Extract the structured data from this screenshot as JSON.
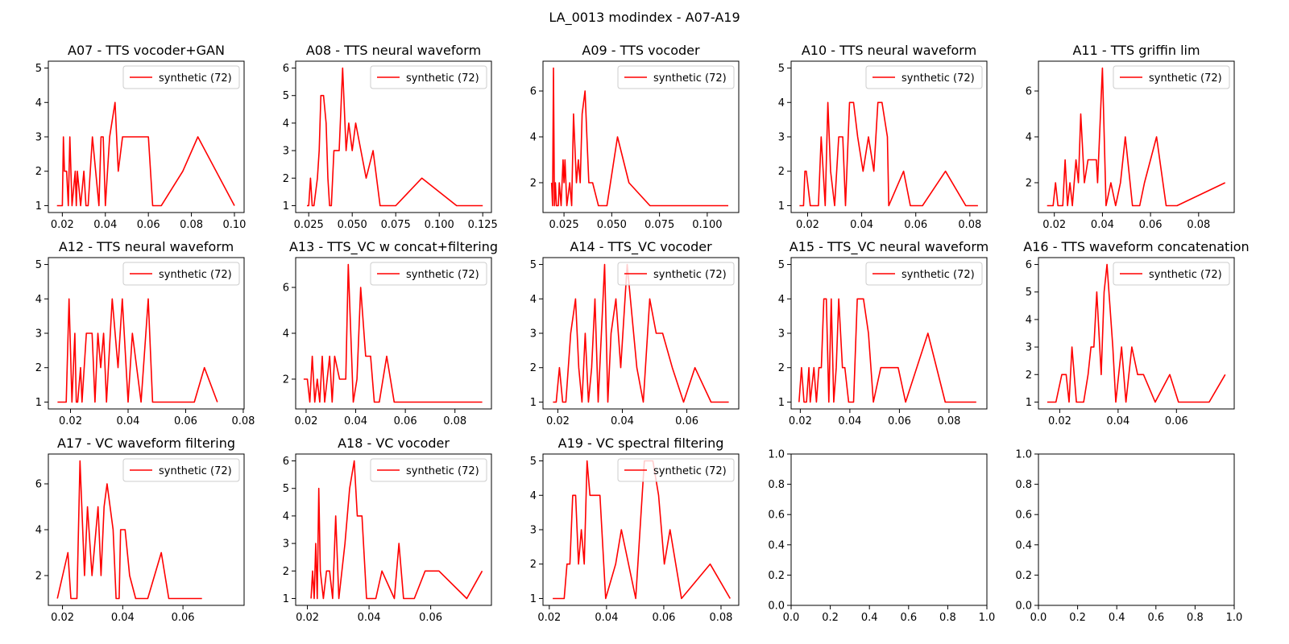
{
  "figure_title": "LA_0013 modindex - A07-A19",
  "series_color": "#ff0000",
  "chart_data": [
    {
      "type": "line",
      "title": "A07 - TTS vocoder+GAN",
      "legend": "synthetic (72)",
      "legend_loc": "upper right",
      "xlim": [
        0.0135,
        0.1045
      ],
      "ylim": [
        0.8,
        5.2
      ],
      "xticks": [
        0.02,
        0.04,
        0.06,
        0.08,
        0.1
      ],
      "xtick_labels": [
        "0.02",
        "0.04",
        "0.06",
        "0.08",
        "0.10"
      ],
      "yticks": [
        1,
        2,
        3,
        4,
        5
      ],
      "ytick_labels": [
        "1",
        "2",
        "3",
        "4",
        "5"
      ],
      "x": [
        0.0175,
        0.02,
        0.0205,
        0.021,
        0.022,
        0.0228,
        0.0235,
        0.0245,
        0.026,
        0.0265,
        0.027,
        0.0285,
        0.03,
        0.031,
        0.032,
        0.034,
        0.037,
        0.038,
        0.039,
        0.04,
        0.042,
        0.0445,
        0.046,
        0.048,
        0.052,
        0.055,
        0.06,
        0.062,
        0.066,
        0.076,
        0.083,
        0.1
      ],
      "y": [
        1,
        1,
        3,
        2,
        2,
        1,
        3,
        1,
        2,
        1,
        2,
        1,
        2,
        1,
        1,
        3,
        1,
        3,
        3,
        1,
        3,
        4,
        2,
        3,
        3,
        3,
        3,
        1,
        1,
        2,
        3,
        1
      ]
    },
    {
      "type": "line",
      "title": "A08 - TTS neural waveform",
      "legend": "synthetic (72)",
      "legend_loc": "upper right",
      "xlim": [
        0.0175,
        0.13
      ],
      "ylim": [
        0.75,
        6.25
      ],
      "xticks": [
        0.025,
        0.05,
        0.075,
        0.1,
        0.125
      ],
      "xtick_labels": [
        "0.025",
        "0.050",
        "0.075",
        "0.100",
        "0.125"
      ],
      "yticks": [
        1,
        2,
        3,
        4,
        5,
        6
      ],
      "ytick_labels": [
        "1",
        "2",
        "3",
        "4",
        "5",
        "6"
      ],
      "x": [
        0.024,
        0.025,
        0.026,
        0.027,
        0.028,
        0.03,
        0.031,
        0.032,
        0.0335,
        0.035,
        0.036,
        0.037,
        0.038,
        0.0395,
        0.0425,
        0.0445,
        0.0465,
        0.048,
        0.05,
        0.052,
        0.055,
        0.058,
        0.062,
        0.066,
        0.075,
        0.09,
        0.11,
        0.125
      ],
      "y": [
        1,
        1,
        2,
        1,
        1,
        2,
        3,
        5,
        5,
        4,
        2,
        1,
        1,
        3,
        3,
        6,
        3,
        4,
        3,
        4,
        3,
        2,
        3,
        1,
        1,
        2,
        1,
        1
      ]
    },
    {
      "type": "line",
      "title": "A09 - TTS vocoder",
      "legend": "synthetic (72)",
      "legend_loc": "upper right",
      "xlim": [
        0.014,
        0.1165
      ],
      "ylim": [
        0.7,
        7.3
      ],
      "xticks": [
        0.025,
        0.05,
        0.075,
        0.1
      ],
      "xtick_labels": [
        "0.025",
        "0.050",
        "0.075",
        "0.100"
      ],
      "yticks": [
        2,
        4,
        6
      ],
      "ytick_labels": [
        "2",
        "4",
        "6"
      ],
      "x": [
        0.0185,
        0.019,
        0.0195,
        0.02,
        0.0205,
        0.021,
        0.022,
        0.0225,
        0.0235,
        0.0245,
        0.025,
        0.0255,
        0.0265,
        0.028,
        0.029,
        0.03,
        0.0315,
        0.0325,
        0.0335,
        0.0345,
        0.036,
        0.037,
        0.038,
        0.04,
        0.043,
        0.0475,
        0.053,
        0.059,
        0.07,
        0.09,
        0.111
      ],
      "y": [
        2,
        1,
        7,
        1,
        2,
        1,
        1,
        2,
        1,
        3,
        2,
        3,
        1,
        2,
        1,
        5,
        2,
        3,
        2,
        5,
        6,
        4,
        2,
        2,
        1,
        1,
        4,
        2,
        1,
        1,
        1
      ]
    },
    {
      "type": "line",
      "title": "A10 - TTS neural waveform",
      "legend": "synthetic (72)",
      "legend_loc": "upper right",
      "xlim": [
        0.0139,
        0.0863
      ],
      "ylim": [
        0.8,
        5.2
      ],
      "xticks": [
        0.02,
        0.04,
        0.06,
        0.08
      ],
      "xtick_labels": [
        "0.02",
        "0.04",
        "0.06",
        "0.08"
      ],
      "yticks": [
        1,
        2,
        3,
        4,
        5
      ],
      "ytick_labels": [
        "1",
        "2",
        "3",
        "4",
        "5"
      ],
      "x": [
        0.017,
        0.0185,
        0.019,
        0.0195,
        0.021,
        0.023,
        0.024,
        0.025,
        0.0265,
        0.0275,
        0.0285,
        0.03,
        0.0315,
        0.033,
        0.034,
        0.0355,
        0.037,
        0.0385,
        0.0405,
        0.0425,
        0.0445,
        0.046,
        0.0475,
        0.0495,
        0.05,
        0.0555,
        0.058,
        0.0625,
        0.071,
        0.0785,
        0.083
      ],
      "y": [
        1,
        1,
        2,
        2,
        1,
        1,
        1,
        3,
        1,
        4,
        2,
        1,
        3,
        3,
        1,
        4,
        4,
        3,
        2,
        3,
        2,
        4,
        4,
        3,
        1,
        2,
        1,
        1,
        2,
        1,
        1
      ]
    },
    {
      "type": "line",
      "title": "A11 - TTS griffin lim",
      "legend": "synthetic (72)",
      "legend_loc": "upper right",
      "xlim": [
        0.0134,
        0.0948
      ],
      "ylim": [
        0.7,
        7.3
      ],
      "xticks": [
        0.02,
        0.04,
        0.06,
        0.08
      ],
      "xtick_labels": [
        "0.02",
        "0.04",
        "0.06",
        "0.08"
      ],
      "yticks": [
        2,
        4,
        6
      ],
      "ytick_labels": [
        "2",
        "4",
        "6"
      ],
      "x": [
        0.017,
        0.0195,
        0.0205,
        0.0215,
        0.022,
        0.0235,
        0.0245,
        0.0255,
        0.0265,
        0.0275,
        0.029,
        0.03,
        0.031,
        0.0325,
        0.034,
        0.035,
        0.0375,
        0.038,
        0.04,
        0.0415,
        0.0435,
        0.0455,
        0.0475,
        0.0495,
        0.0505,
        0.0525,
        0.0555,
        0.0575,
        0.0625,
        0.0665,
        0.071,
        0.091
      ],
      "y": [
        1,
        1,
        2,
        1,
        1,
        1,
        3,
        1,
        2,
        1,
        3,
        2,
        5,
        2,
        3,
        3,
        3,
        2,
        7,
        1,
        2,
        1,
        2,
        4,
        3,
        1,
        1,
        2,
        4,
        1,
        1,
        2
      ]
    },
    {
      "type": "line",
      "title": "A12 - TTS neural waveform",
      "legend": "synthetic (72)",
      "legend_loc": "upper right",
      "xlim": [
        0.0123,
        0.0803
      ],
      "ylim": [
        0.8,
        5.2
      ],
      "xticks": [
        0.02,
        0.04,
        0.06,
        0.08
      ],
      "xtick_labels": [
        "0.02",
        "0.04",
        "0.06",
        "0.08"
      ],
      "yticks": [
        1,
        2,
        3,
        4,
        5
      ],
      "ytick_labels": [
        "1",
        "2",
        "3",
        "4",
        "5"
      ],
      "x": [
        0.0155,
        0.017,
        0.0185,
        0.0195,
        0.0205,
        0.0215,
        0.022,
        0.0225,
        0.0235,
        0.024,
        0.0255,
        0.026,
        0.0275,
        0.0285,
        0.0295,
        0.0305,
        0.0315,
        0.0325,
        0.0345,
        0.0365,
        0.038,
        0.04,
        0.0415,
        0.0445,
        0.047,
        0.0485,
        0.053,
        0.063,
        0.0665,
        0.071
      ],
      "y": [
        1,
        1,
        1,
        4,
        1,
        3,
        1,
        1,
        2,
        1,
        3,
        3,
        3,
        1,
        3,
        2,
        3,
        1,
        4,
        2,
        4,
        1,
        3,
        1,
        4,
        1,
        1,
        1,
        2,
        1
      ]
    },
    {
      "type": "line",
      "title": "A13 - TTS_VC w concat+filtering",
      "legend": "synthetic (72)",
      "legend_loc": "upper right",
      "xlim": [
        0.0158,
        0.0947
      ],
      "ylim": [
        0.7,
        7.3
      ],
      "xticks": [
        0.02,
        0.04,
        0.06,
        0.08
      ],
      "xtick_labels": [
        "0.02",
        "0.04",
        "0.06",
        "0.08"
      ],
      "yticks": [
        2,
        4,
        6
      ],
      "ytick_labels": [
        "2",
        "4",
        "6"
      ],
      "x": [
        0.019,
        0.0205,
        0.0215,
        0.0225,
        0.0235,
        0.0245,
        0.0255,
        0.0265,
        0.0275,
        0.0285,
        0.0295,
        0.0305,
        0.0315,
        0.0335,
        0.036,
        0.037,
        0.039,
        0.0405,
        0.042,
        0.044,
        0.046,
        0.0475,
        0.0495,
        0.0525,
        0.0555,
        0.0595,
        0.0715,
        0.091
      ],
      "y": [
        2,
        2,
        1,
        3,
        1,
        2,
        1,
        3,
        1,
        2,
        3,
        1,
        3,
        2,
        2,
        7,
        1,
        2,
        6,
        3,
        3,
        1,
        1,
        3,
        1,
        1,
        1,
        1
      ]
    },
    {
      "type": "line",
      "title": "A14 - TTS_VC vocoder",
      "legend": "synthetic (72)",
      "legend_loc": "upper right",
      "xlim": [
        0.0154,
        0.0761
      ],
      "ylim": [
        0.8,
        5.2
      ],
      "xticks": [
        0.02,
        0.04,
        0.06
      ],
      "xtick_labels": [
        "0.02",
        "0.04",
        "0.06"
      ],
      "yticks": [
        1,
        2,
        3,
        4,
        5
      ],
      "ytick_labels": [
        "1",
        "2",
        "3",
        "4",
        "5"
      ],
      "x": [
        0.0185,
        0.0195,
        0.0205,
        0.0215,
        0.0225,
        0.024,
        0.0255,
        0.0265,
        0.0275,
        0.0285,
        0.0295,
        0.0305,
        0.0315,
        0.0325,
        0.0335,
        0.0345,
        0.0355,
        0.0365,
        0.038,
        0.0395,
        0.0415,
        0.0425,
        0.0445,
        0.0465,
        0.0485,
        0.0505,
        0.0525,
        0.0555,
        0.059,
        0.0625,
        0.0675,
        0.073
      ],
      "y": [
        1,
        1,
        2,
        1,
        1,
        3,
        4,
        2,
        1,
        3,
        1,
        2,
        4,
        1,
        3,
        5,
        1,
        3,
        4,
        2,
        5,
        4,
        2,
        1,
        4,
        3,
        3,
        2,
        1,
        2,
        1,
        1
      ]
    },
    {
      "type": "line",
      "title": "A15 - TTS_VC neural waveform",
      "legend": "synthetic (72)",
      "legend_loc": "upper right",
      "xlim": [
        0.0163,
        0.0953
      ],
      "ylim": [
        0.8,
        5.2
      ],
      "xticks": [
        0.02,
        0.04,
        0.06,
        0.08
      ],
      "xtick_labels": [
        "0.02",
        "0.04",
        "0.06",
        "0.08"
      ],
      "yticks": [
        1,
        2,
        3,
        4,
        5
      ],
      "ytick_labels": [
        "1",
        "2",
        "3",
        "4",
        "5"
      ],
      "x": [
        0.0195,
        0.0205,
        0.0215,
        0.0225,
        0.0235,
        0.024,
        0.0255,
        0.0265,
        0.0275,
        0.0285,
        0.0295,
        0.0305,
        0.0315,
        0.0325,
        0.0335,
        0.0345,
        0.0355,
        0.037,
        0.038,
        0.0395,
        0.0415,
        0.043,
        0.0455,
        0.0475,
        0.0495,
        0.0525,
        0.0565,
        0.0595,
        0.0625,
        0.0715,
        0.0785,
        0.0815,
        0.091
      ],
      "y": [
        1,
        2,
        1,
        1,
        2,
        1,
        2,
        1,
        2,
        2,
        4,
        4,
        1,
        4,
        1,
        2,
        4,
        2,
        2,
        1,
        1,
        4,
        4,
        3,
        1,
        2,
        2,
        2,
        1,
        3,
        1,
        1,
        1
      ]
    },
    {
      "type": "line",
      "title": "A16 - TTS waveform concatenation",
      "legend": "synthetic (72)",
      "legend_loc": "upper right",
      "xlim": [
        0.0127,
        0.0798
      ],
      "ylim": [
        0.75,
        6.25
      ],
      "xticks": [
        0.02,
        0.04,
        0.06
      ],
      "xtick_labels": [
        "0.02",
        "0.04",
        "0.06"
      ],
      "yticks": [
        1,
        2,
        3,
        4,
        5,
        6
      ],
      "ytick_labels": [
        "1",
        "2",
        "3",
        "4",
        "5",
        "6"
      ],
      "x": [
        0.0157,
        0.0187,
        0.0207,
        0.0222,
        0.0232,
        0.0242,
        0.0257,
        0.0267,
        0.0282,
        0.0297,
        0.0307,
        0.0317,
        0.0327,
        0.0342,
        0.0352,
        0.0362,
        0.0382,
        0.0392,
        0.0412,
        0.0427,
        0.0447,
        0.0467,
        0.0487,
        0.0527,
        0.0577,
        0.0607,
        0.0652,
        0.0712,
        0.0767
      ],
      "y": [
        1,
        1,
        2,
        2,
        1,
        3,
        1,
        1,
        1,
        2,
        3,
        3,
        5,
        2,
        5,
        6,
        3,
        1,
        3,
        1,
        3,
        2,
        2,
        1,
        2,
        1,
        1,
        1,
        2
      ]
    },
    {
      "type": "line",
      "title": "A17 - VC waveform filtering",
      "legend": "synthetic (72)",
      "legend_loc": "upper right",
      "xlim": [
        0.0153,
        0.0803
      ],
      "ylim": [
        0.7,
        7.3
      ],
      "xticks": [
        0.02,
        0.04,
        0.06
      ],
      "xtick_labels": [
        "0.02",
        "0.04",
        "0.06"
      ],
      "yticks": [
        2,
        4,
        6
      ],
      "ytick_labels": [
        "2",
        "4",
        "6"
      ],
      "x": [
        0.0183,
        0.0218,
        0.0228,
        0.0248,
        0.0258,
        0.0273,
        0.0283,
        0.0298,
        0.0318,
        0.0328,
        0.0338,
        0.0348,
        0.0368,
        0.0378,
        0.0388,
        0.0393,
        0.0408,
        0.0423,
        0.0443,
        0.0483,
        0.0528,
        0.0553,
        0.0593,
        0.0663
      ],
      "y": [
        1,
        3,
        1,
        1,
        7,
        2,
        5,
        2,
        5,
        2,
        5,
        6,
        4,
        1,
        1,
        4,
        4,
        2,
        1,
        1,
        3,
        1,
        1,
        1
      ]
    },
    {
      "type": "line",
      "title": "A18 - VC vocoder",
      "legend": "synthetic (72)",
      "legend_loc": "upper right",
      "xlim": [
        0.0162,
        0.0797
      ],
      "ylim": [
        0.75,
        6.25
      ],
      "xticks": [
        0.02,
        0.04,
        0.06
      ],
      "xtick_labels": [
        "0.02",
        "0.04",
        "0.06"
      ],
      "yticks": [
        1,
        2,
        3,
        4,
        5,
        6
      ],
      "ytick_labels": [
        "1",
        "2",
        "3",
        "4",
        "5",
        "6"
      ],
      "x": [
        0.0212,
        0.0217,
        0.0222,
        0.0227,
        0.0232,
        0.0237,
        0.0242,
        0.0252,
        0.0262,
        0.0272,
        0.0282,
        0.0292,
        0.0302,
        0.0312,
        0.0322,
        0.0337,
        0.0352,
        0.0362,
        0.0377,
        0.0392,
        0.0422,
        0.0442,
        0.0482,
        0.0497,
        0.0512,
        0.0547,
        0.0582,
        0.0627,
        0.0717,
        0.0767
      ],
      "y": [
        1,
        2,
        1,
        3,
        1,
        5,
        2,
        1,
        2,
        2,
        1,
        4,
        1,
        2,
        3,
        5,
        6,
        4,
        4,
        1,
        1,
        2,
        1,
        3,
        1,
        1,
        2,
        2,
        1,
        2
      ]
    },
    {
      "type": "line",
      "title": "A19 - VC spectral filtering",
      "legend": "synthetic (72)",
      "legend_loc": "upper right",
      "xlim": [
        0.0178,
        0.0862
      ],
      "ylim": [
        0.8,
        5.2
      ],
      "xticks": [
        0.02,
        0.04,
        0.06,
        0.08
      ],
      "xtick_labels": [
        "0.02",
        "0.04",
        "0.06",
        "0.08"
      ],
      "yticks": [
        1,
        2,
        3,
        4,
        5
      ],
      "ytick_labels": [
        "1",
        "2",
        "3",
        "4",
        "5"
      ],
      "x": [
        0.0212,
        0.0252,
        0.0262,
        0.0272,
        0.0282,
        0.0292,
        0.0302,
        0.0312,
        0.0322,
        0.0332,
        0.0342,
        0.0352,
        0.0377,
        0.0397,
        0.0432,
        0.0452,
        0.0502,
        0.0532,
        0.0562,
        0.0582,
        0.0602,
        0.0622,
        0.0662,
        0.0762,
        0.0832
      ],
      "y": [
        1,
        1,
        2,
        2,
        4,
        4,
        2,
        3,
        2,
        5,
        4,
        4,
        4,
        1,
        2,
        3,
        1,
        5,
        5,
        4,
        2,
        3,
        1,
        2,
        1
      ]
    },
    {
      "type": "line",
      "title": "",
      "legend": "",
      "legend_loc": "",
      "xlim": [
        0,
        1
      ],
      "ylim": [
        0,
        1
      ],
      "xticks": [
        0,
        0.2,
        0.4,
        0.6,
        0.8,
        1.0
      ],
      "xtick_labels": [
        "0.0",
        "0.2",
        "0.4",
        "0.6",
        "0.8",
        "1.0"
      ],
      "yticks": [
        0,
        0.2,
        0.4,
        0.6,
        0.8,
        1.0
      ],
      "ytick_labels": [
        "0.0",
        "0.2",
        "0.4",
        "0.6",
        "0.8",
        "1.0"
      ],
      "x": [],
      "y": []
    },
    {
      "type": "line",
      "title": "",
      "legend": "",
      "legend_loc": "",
      "xlim": [
        0,
        1
      ],
      "ylim": [
        0,
        1
      ],
      "xticks": [
        0,
        0.2,
        0.4,
        0.6,
        0.8,
        1.0
      ],
      "xtick_labels": [
        "0.0",
        "0.2",
        "0.4",
        "0.6",
        "0.8",
        "1.0"
      ],
      "yticks": [
        0,
        0.2,
        0.4,
        0.6,
        0.8,
        1.0
      ],
      "ytick_labels": [
        "0.0",
        "0.2",
        "0.4",
        "0.6",
        "0.8",
        "1.0"
      ],
      "x": [],
      "y": []
    }
  ]
}
